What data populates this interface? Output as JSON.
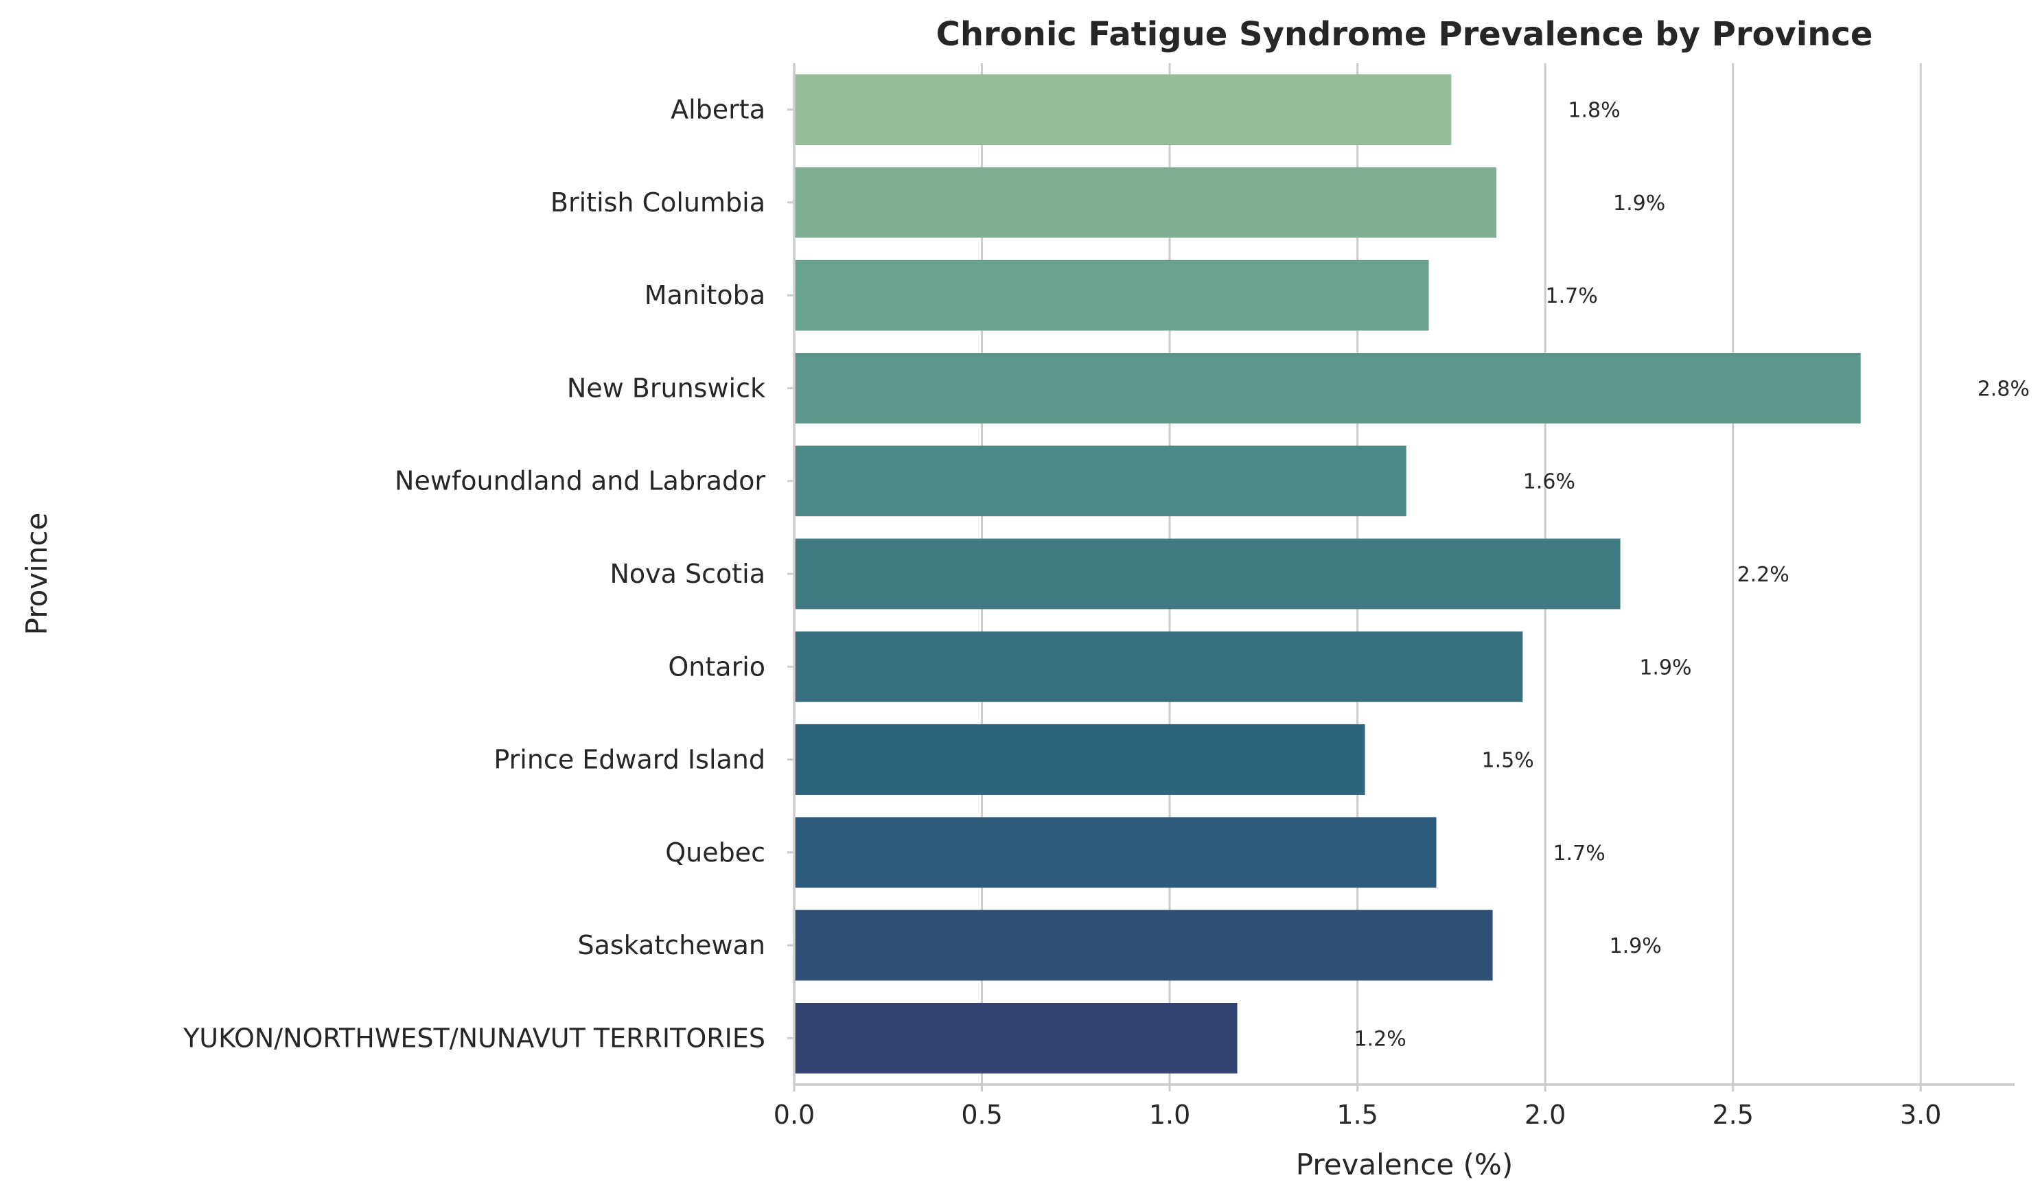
{
  "chart_data": {
    "type": "bar",
    "orientation": "horizontal",
    "title": "Chronic Fatigue Syndrome Prevalence by Province",
    "xlabel": "Prevalence (%)",
    "ylabel": "Province",
    "xlim": [
      0,
      3.25
    ],
    "x_ticks": [
      "0.0",
      "0.5",
      "1.0",
      "1.5",
      "2.0",
      "2.5",
      "3.0"
    ],
    "grid": "vertical",
    "categories": [
      "Alberta",
      "British Columbia",
      "Manitoba",
      "New Brunswick",
      "Newfoundland and Labrador",
      "Nova Scotia",
      "Ontario",
      "Prince Edward Island",
      "Quebec",
      "Saskatchewan",
      "YUKON/NORTHWEST/NUNAVUT TERRITORIES"
    ],
    "values": [
      1.75,
      1.87,
      1.69,
      2.84,
      1.63,
      2.2,
      1.94,
      1.52,
      1.71,
      1.86,
      1.18
    ],
    "data_labels": [
      "1.8%",
      "1.9%",
      "1.7%",
      "2.8%",
      "1.6%",
      "2.2%",
      "1.9%",
      "1.5%",
      "1.7%",
      "1.9%",
      "1.2%"
    ],
    "colors": [
      "#95bd97",
      "#7faf93",
      "#6ba28d",
      "#5c9589",
      "#4d8985",
      "#407b82",
      "#376f7e",
      "#2e657c",
      "#2d5a7a",
      "#305176",
      "#354470"
    ]
  }
}
